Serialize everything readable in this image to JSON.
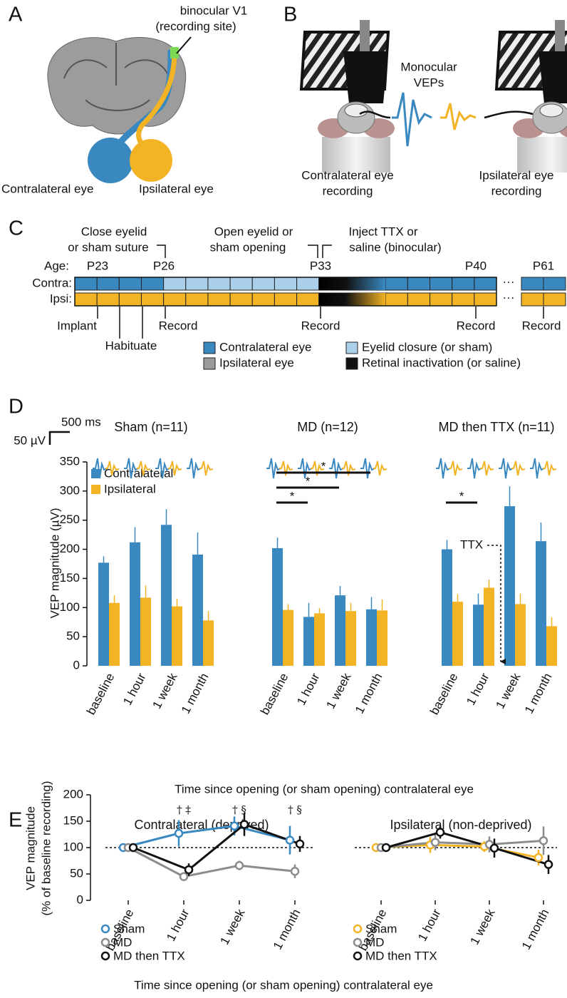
{
  "panel_labels": {
    "a": "A",
    "b": "B",
    "c": "C",
    "d": "D",
    "e": "E"
  },
  "panel_a": {
    "site_label": [
      "binocular V1",
      "(recording site)"
    ],
    "contra_label": "Contralateral eye",
    "ipsi_label": "Ipsilateral eye"
  },
  "panel_b": {
    "vep_label": [
      "Monocular",
      "VEPs"
    ],
    "contra_label": [
      "Contralateral eye",
      "recording"
    ],
    "ipsi_label": [
      "Ipsilateral eye",
      "recording"
    ]
  },
  "panel_c": {
    "events": [
      [
        "Close eyelid",
        "or sham suture"
      ],
      [
        "Open eyelid or",
        "sham opening"
      ],
      [
        "Inject TTX or",
        "saline (binocular)"
      ]
    ],
    "age_label": "Age:",
    "ages": [
      "P23",
      "P26",
      "P33",
      "P40",
      "P61"
    ],
    "rows": [
      "Contra:",
      "Ipsi:"
    ],
    "ellipsis": "···",
    "procedures": [
      "Implant",
      "Habituate"
    ],
    "recordings": [
      "Record",
      "Record",
      "Record",
      "Record"
    ],
    "legend": [
      {
        "label": "Contralateral eye",
        "color": "#3a88c0"
      },
      {
        "label": "Ipsilateral eye",
        "color": "#9a9a9a"
      },
      {
        "label": "Eyelid closure (or sham)",
        "color": "#a9cfe9"
      },
      {
        "label": "Retinal inactivation (or saline)",
        "color": "#111111"
      }
    ]
  },
  "chart_data": [
    {
      "type": "grouped_bar",
      "y_label": "VEP magnitude (µV)",
      "x_label": "Time since opening (or sham opening) contralateral eye",
      "ylim": [
        0,
        350
      ],
      "yticks": [
        0,
        50,
        100,
        150,
        200,
        250,
        300,
        350
      ],
      "scale_bar": {
        "time": "500 ms",
        "amplitude": "50 µV"
      },
      "series": [
        {
          "name": "Contralateral",
          "color": "#3a88c0"
        },
        {
          "name": "Ipsilateral",
          "color": "#f2b324"
        }
      ],
      "groups": [
        {
          "title": "Sham (n=11)",
          "categories": [
            "baseline",
            "1 hour",
            "1 week",
            "1 month"
          ],
          "series": [
            {
              "values": [
                177,
                212,
                242,
                191
              ],
              "errors": [
                11,
                26,
                27,
                38
              ]
            },
            {
              "values": [
                108,
                117,
                102,
                78
              ],
              "errors": [
                13,
                21,
                13,
                16
              ]
            }
          ]
        },
        {
          "title": "MD (n=12)",
          "categories": [
            "baseline",
            "1 hour",
            "1 week",
            "1 month"
          ],
          "series": [
            {
              "values": [
                202,
                84,
                121,
                97
              ],
              "errors": [
                18,
                24,
                16,
                21
              ]
            },
            {
              "values": [
                96,
                90,
                94,
                95
              ],
              "errors": [
                10,
                9,
                14,
                19
              ]
            }
          ],
          "significance": [
            {
              "from": "baseline",
              "to": "1 hour",
              "label": "*"
            },
            {
              "from": "baseline",
              "to": "1 week",
              "label": "*"
            },
            {
              "from": "baseline",
              "to": "1 month",
              "label": "*"
            }
          ]
        },
        {
          "title": "MD then TTX (n=11)",
          "categories": [
            "baseline",
            "1 hour",
            "1 week",
            "1 month"
          ],
          "series": [
            {
              "values": [
                200,
                105,
                274,
                214
              ],
              "errors": [
                16,
                19,
                34,
                32
              ]
            },
            {
              "values": [
                110,
                134,
                106,
                68
              ],
              "errors": [
                13,
                14,
                18,
                15
              ]
            }
          ],
          "significance": [
            {
              "from": "baseline",
              "to": "1 hour",
              "label": "*"
            }
          ],
          "annotation": "TTX"
        }
      ]
    },
    {
      "type": "line",
      "title": "Contralateral (deprived)",
      "y_label": [
        "VEP magnitude",
        "(% of baseline recording)"
      ],
      "x_label": "Time since opening (or sham opening) contralateral eye",
      "categories": [
        "baseline",
        "1 hour",
        "1 week",
        "1 month"
      ],
      "ylim": [
        0,
        200
      ],
      "yticks": [
        0,
        50,
        100,
        150,
        200
      ],
      "reference_line": 100,
      "series": [
        {
          "name": "Sham",
          "color": "#3a88c0",
          "values": [
            100,
            127,
            141,
            114
          ],
          "errors": [
            null,
            25,
            18,
            27
          ]
        },
        {
          "name": "MD",
          "color": "#8c8c8c",
          "values": [
            100,
            45,
            66,
            55
          ],
          "errors": [
            null,
            8,
            9,
            13
          ]
        },
        {
          "name": "MD then TTX",
          "color": "#111111",
          "values": [
            100,
            58,
            144,
            107
          ],
          "errors": [
            null,
            12,
            22,
            15
          ]
        }
      ],
      "annotations": [
        {
          "category": "1 hour",
          "label": "† ‡"
        },
        {
          "category": "1 week",
          "label": "† §"
        },
        {
          "category": "1 month",
          "label": "† §"
        }
      ]
    },
    {
      "type": "line",
      "title": "Ipsilateral (non-deprived)",
      "categories": [
        "baseline",
        "1 hour",
        "1 week",
        "1 month"
      ],
      "ylim": [
        0,
        200
      ],
      "reference_line": 100,
      "series": [
        {
          "name": "Sham",
          "color": "#f2b324",
          "values": [
            100,
            105,
            102,
            81
          ],
          "errors": [
            null,
            15,
            10,
            15
          ]
        },
        {
          "name": "MD",
          "color": "#8c8c8c",
          "values": [
            100,
            110,
            106,
            113
          ],
          "errors": [
            null,
            15,
            15,
            27
          ]
        },
        {
          "name": "MD then TTX",
          "color": "#111111",
          "values": [
            100,
            129,
            99,
            68
          ],
          "errors": [
            null,
            12,
            18,
            18
          ]
        }
      ]
    }
  ]
}
